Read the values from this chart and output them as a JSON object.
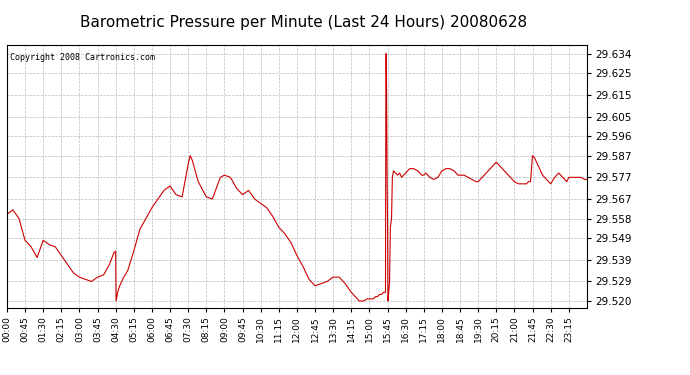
{
  "title": "Barometric Pressure per Minute (Last 24 Hours) 20080628",
  "copyright_text": "Copyright 2008 Cartronics.com",
  "line_color": "#cc0000",
  "background_color": "#ffffff",
  "plot_bg_color": "#ffffff",
  "grid_color": "#bbbbbb",
  "title_fontsize": 11,
  "yticks": [
    29.52,
    29.529,
    29.539,
    29.549,
    29.558,
    29.567,
    29.577,
    29.587,
    29.596,
    29.605,
    29.615,
    29.625,
    29.634
  ],
  "ylim": [
    29.517,
    29.638
  ],
  "xtick_labels": [
    "00:00",
    "00:45",
    "01:30",
    "02:15",
    "03:00",
    "03:45",
    "04:30",
    "05:15",
    "06:00",
    "06:45",
    "07:30",
    "08:15",
    "09:00",
    "09:45",
    "10:30",
    "11:15",
    "12:00",
    "12:45",
    "13:30",
    "14:15",
    "15:00",
    "15:45",
    "16:30",
    "17:15",
    "18:00",
    "18:45",
    "19:30",
    "20:15",
    "21:00",
    "21:45",
    "22:30",
    "23:15"
  ],
  "x_values": [
    0,
    45,
    90,
    135,
    180,
    225,
    270,
    315,
    360,
    405,
    450,
    495,
    540,
    585,
    630,
    675,
    720,
    765,
    810,
    855,
    900,
    945,
    990,
    1035,
    1080,
    1125,
    1170,
    1215,
    1260,
    1305,
    1350,
    1395
  ],
  "pressure_data": [
    [
      0,
      29.56
    ],
    [
      15,
      29.562
    ],
    [
      30,
      29.558
    ],
    [
      45,
      29.548
    ],
    [
      60,
      29.545
    ],
    [
      75,
      29.54
    ],
    [
      90,
      29.548
    ],
    [
      105,
      29.546
    ],
    [
      120,
      29.545
    ],
    [
      135,
      29.541
    ],
    [
      150,
      29.537
    ],
    [
      165,
      29.533
    ],
    [
      180,
      29.531
    ],
    [
      195,
      29.53
    ],
    [
      210,
      29.529
    ],
    [
      225,
      29.531
    ],
    [
      240,
      29.532
    ],
    [
      255,
      29.537
    ],
    [
      265,
      29.542
    ],
    [
      270,
      29.543
    ],
    [
      271,
      29.52
    ],
    [
      275,
      29.524
    ],
    [
      280,
      29.527
    ],
    [
      290,
      29.531
    ],
    [
      300,
      29.534
    ],
    [
      315,
      29.543
    ],
    [
      330,
      29.553
    ],
    [
      345,
      29.558
    ],
    [
      360,
      29.563
    ],
    [
      375,
      29.567
    ],
    [
      390,
      29.571
    ],
    [
      405,
      29.573
    ],
    [
      420,
      29.569
    ],
    [
      435,
      29.568
    ],
    [
      450,
      29.583
    ],
    [
      455,
      29.587
    ],
    [
      460,
      29.585
    ],
    [
      475,
      29.575
    ],
    [
      495,
      29.568
    ],
    [
      510,
      29.567
    ],
    [
      530,
      29.577
    ],
    [
      540,
      29.578
    ],
    [
      555,
      29.577
    ],
    [
      570,
      29.572
    ],
    [
      585,
      29.569
    ],
    [
      600,
      29.571
    ],
    [
      615,
      29.567
    ],
    [
      630,
      29.565
    ],
    [
      645,
      29.563
    ],
    [
      660,
      29.559
    ],
    [
      675,
      29.554
    ],
    [
      690,
      29.551
    ],
    [
      705,
      29.547
    ],
    [
      720,
      29.541
    ],
    [
      735,
      29.536
    ],
    [
      750,
      29.53
    ],
    [
      765,
      29.527
    ],
    [
      780,
      29.528
    ],
    [
      795,
      29.529
    ],
    [
      810,
      29.531
    ],
    [
      825,
      29.531
    ],
    [
      840,
      29.528
    ],
    [
      855,
      29.524
    ],
    [
      870,
      29.521
    ],
    [
      875,
      29.52
    ],
    [
      885,
      29.52
    ],
    [
      895,
      29.521
    ],
    [
      900,
      29.521
    ],
    [
      905,
      29.521
    ],
    [
      910,
      29.521
    ],
    [
      915,
      29.522
    ],
    [
      920,
      29.522
    ],
    [
      925,
      29.523
    ],
    [
      930,
      29.523
    ],
    [
      935,
      29.524
    ],
    [
      940,
      29.524
    ],
    [
      941,
      29.634
    ],
    [
      942,
      29.634
    ],
    [
      943,
      29.6
    ],
    [
      944,
      29.575
    ],
    [
      945,
      29.558
    ],
    [
      946,
      29.52
    ],
    [
      948,
      29.524
    ],
    [
      950,
      29.529
    ],
    [
      952,
      29.554
    ],
    [
      955,
      29.558
    ],
    [
      957,
      29.577
    ],
    [
      960,
      29.58
    ],
    [
      970,
      29.578
    ],
    [
      975,
      29.579
    ],
    [
      980,
      29.577
    ],
    [
      985,
      29.578
    ],
    [
      990,
      29.579
    ],
    [
      995,
      29.58
    ],
    [
      1000,
      29.581
    ],
    [
      1010,
      29.581
    ],
    [
      1020,
      29.58
    ],
    [
      1030,
      29.578
    ],
    [
      1035,
      29.578
    ],
    [
      1040,
      29.579
    ],
    [
      1050,
      29.577
    ],
    [
      1060,
      29.576
    ],
    [
      1070,
      29.577
    ],
    [
      1080,
      29.58
    ],
    [
      1090,
      29.581
    ],
    [
      1100,
      29.581
    ],
    [
      1110,
      29.58
    ],
    [
      1120,
      29.578
    ],
    [
      1125,
      29.578
    ],
    [
      1135,
      29.578
    ],
    [
      1145,
      29.577
    ],
    [
      1155,
      29.576
    ],
    [
      1165,
      29.575
    ],
    [
      1170,
      29.575
    ],
    [
      1180,
      29.577
    ],
    [
      1190,
      29.579
    ],
    [
      1200,
      29.581
    ],
    [
      1210,
      29.583
    ],
    [
      1215,
      29.584
    ],
    [
      1220,
      29.583
    ],
    [
      1230,
      29.581
    ],
    [
      1240,
      29.579
    ],
    [
      1250,
      29.577
    ],
    [
      1260,
      29.575
    ],
    [
      1270,
      29.574
    ],
    [
      1280,
      29.574
    ],
    [
      1290,
      29.574
    ],
    [
      1295,
      29.575
    ],
    [
      1300,
      29.575
    ],
    [
      1305,
      29.587
    ],
    [
      1310,
      29.586
    ],
    [
      1320,
      29.582
    ],
    [
      1330,
      29.578
    ],
    [
      1340,
      29.576
    ],
    [
      1350,
      29.574
    ],
    [
      1360,
      29.577
    ],
    [
      1370,
      29.579
    ],
    [
      1375,
      29.578
    ],
    [
      1385,
      29.576
    ],
    [
      1390,
      29.575
    ],
    [
      1395,
      29.577
    ],
    [
      1410,
      29.577
    ],
    [
      1425,
      29.577
    ],
    [
      1435,
      29.576
    ],
    [
      1439,
      29.576
    ]
  ]
}
